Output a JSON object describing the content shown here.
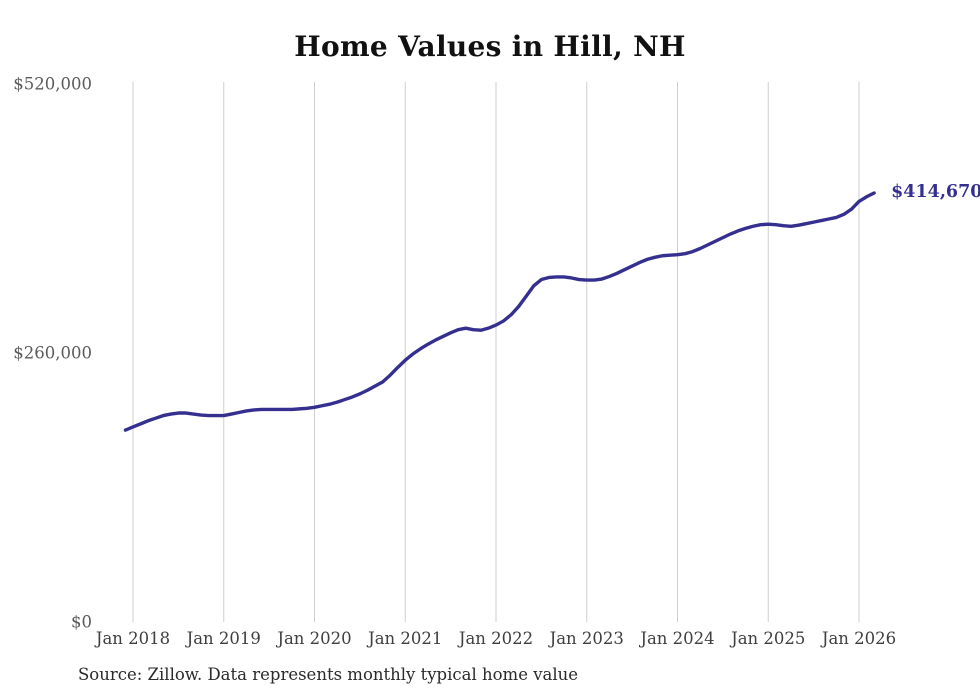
{
  "page": {
    "source_note": "Source: Zillow. Data represents monthly typical home value"
  },
  "chart_data": {
    "type": "line",
    "title": "Home Values in Hill, NH",
    "xlabel": "",
    "ylabel": "",
    "x_unit": "month",
    "x_start": "2017-12",
    "x_end": "2026-03",
    "x_tick_labels": [
      "Jan 2018",
      "Jan 2019",
      "Jan 2020",
      "Jan 2021",
      "Jan 2022",
      "Jan 2023",
      "Jan 2024",
      "Jan 2025",
      "Jan 2026"
    ],
    "y_ticks": [
      520000,
      260000,
      0
    ],
    "y_tick_labels": [
      "$520,000",
      "$260,000",
      "$0"
    ],
    "ylim": [
      0,
      520000
    ],
    "grid": "vertical-only",
    "legend": "none",
    "line_color": "#353090",
    "gridline_color": "#cfcfcf",
    "end_label": "$414,670",
    "final_value": 414670,
    "series": [
      {
        "name": "Typical home value",
        "values": [
          185500,
          188500,
          191500,
          194500,
          197000,
          199500,
          201000,
          202000,
          202000,
          201000,
          200000,
          199500,
          199500,
          199500,
          201000,
          202500,
          204000,
          205000,
          205500,
          205500,
          205500,
          205500,
          205500,
          206000,
          206500,
          207500,
          209000,
          210500,
          212500,
          215000,
          217500,
          220500,
          224000,
          228000,
          232000,
          238500,
          246000,
          253000,
          259000,
          264000,
          268500,
          272500,
          276000,
          279500,
          282500,
          284000,
          282500,
          282000,
          284000,
          287000,
          291000,
          297000,
          305000,
          315000,
          325000,
          331000,
          333000,
          333500,
          333500,
          332500,
          331000,
          330500,
          330500,
          331500,
          334000,
          337000,
          340500,
          344000,
          347500,
          350500,
          352500,
          354000,
          354500,
          355000,
          356000,
          358000,
          361000,
          364500,
          368000,
          371500,
          375000,
          378000,
          380500,
          382500,
          384000,
          384500,
          384000,
          383000,
          382500,
          383500,
          385000,
          386500,
          388000,
          389500,
          391000,
          394000,
          399000,
          406500,
          411000,
          414670
        ]
      }
    ]
  }
}
